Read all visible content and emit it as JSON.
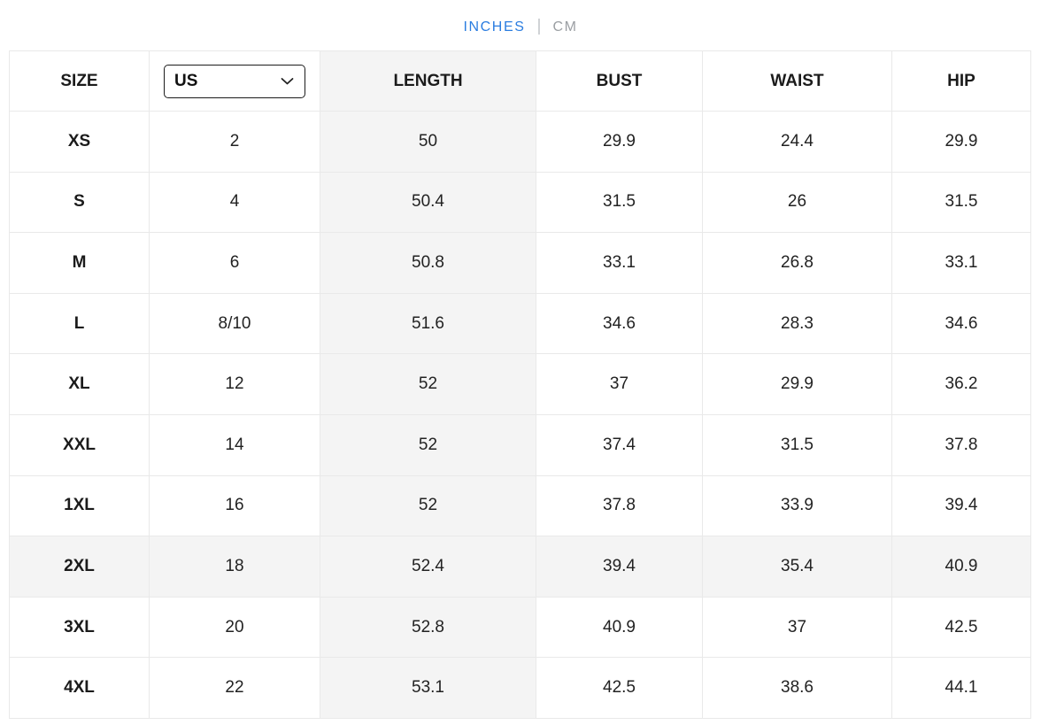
{
  "unit_toggle": {
    "options": [
      {
        "label": "INCHES",
        "active": true
      },
      {
        "label": "CM",
        "active": false
      }
    ],
    "separator": "|",
    "active_color": "#2b7de0",
    "inactive_color": "#9b9fa3"
  },
  "table": {
    "columns": [
      "SIZE",
      "US",
      "LENGTH",
      "BUST",
      "WAIST",
      "HIP"
    ],
    "size_system_select": {
      "value": "US",
      "options": [
        "US"
      ]
    },
    "shaded_column": "LENGTH",
    "highlighted_row": "2XL",
    "rows": [
      {
        "size": "XS",
        "us": "2",
        "length": "50",
        "bust": "29.9",
        "waist": "24.4",
        "hip": "29.9"
      },
      {
        "size": "S",
        "us": "4",
        "length": "50.4",
        "bust": "31.5",
        "waist": "26",
        "hip": "31.5"
      },
      {
        "size": "M",
        "us": "6",
        "length": "50.8",
        "bust": "33.1",
        "waist": "26.8",
        "hip": "33.1"
      },
      {
        "size": "L",
        "us": "8/10",
        "length": "51.6",
        "bust": "34.6",
        "waist": "28.3",
        "hip": "34.6"
      },
      {
        "size": "XL",
        "us": "12",
        "length": "52",
        "bust": "37",
        "waist": "29.9",
        "hip": "36.2"
      },
      {
        "size": "XXL",
        "us": "14",
        "length": "52",
        "bust": "37.4",
        "waist": "31.5",
        "hip": "37.8"
      },
      {
        "size": "1XL",
        "us": "16",
        "length": "52",
        "bust": "37.8",
        "waist": "33.9",
        "hip": "39.4"
      },
      {
        "size": "2XL",
        "us": "18",
        "length": "52.4",
        "bust": "39.4",
        "waist": "35.4",
        "hip": "40.9"
      },
      {
        "size": "3XL",
        "us": "20",
        "length": "52.8",
        "bust": "40.9",
        "waist": "37",
        "hip": "42.5"
      },
      {
        "size": "4XL",
        "us": "22",
        "length": "53.1",
        "bust": "42.5",
        "waist": "38.6",
        "hip": "44.1"
      }
    ]
  }
}
